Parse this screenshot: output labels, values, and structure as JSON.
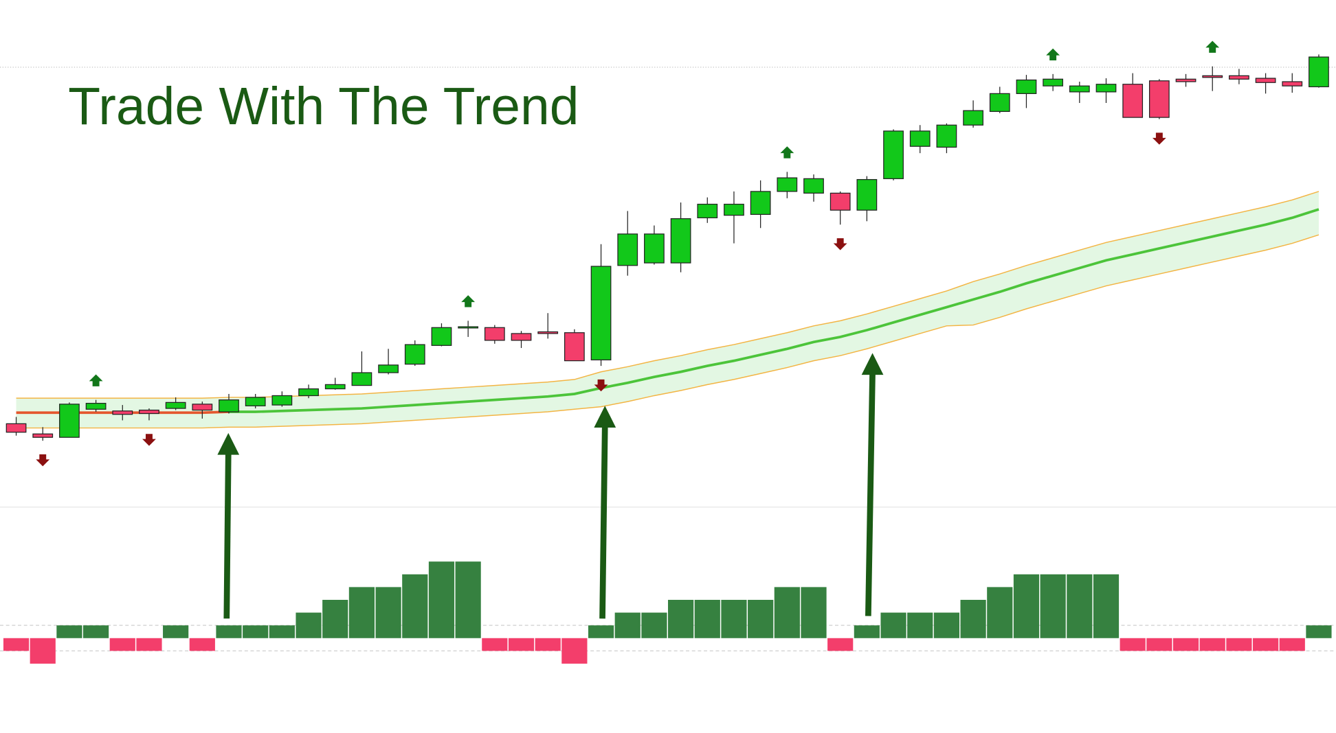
{
  "chart_data": [
    {
      "type": "candlestick",
      "title": "Trade With The Trend",
      "title_color": "#1a5a14",
      "ylim": [
        0,
        595
      ],
      "up_color": "#12c81a",
      "down_color": "#f33e6b",
      "open": [
        97,
        85,
        81,
        114,
        112,
        113,
        115,
        120,
        111,
        118,
        119,
        130,
        138,
        142,
        157,
        167,
        189,
        210,
        210,
        203,
        205,
        204,
        172,
        283,
        286,
        286,
        339,
        342,
        343,
        370,
        368,
        368,
        348,
        385,
        423,
        422,
        448,
        464,
        485,
        494,
        487,
        487,
        496,
        500,
        502,
        506,
        506,
        503,
        499,
        493
      ],
      "high": [
        105,
        93,
        122,
        125,
        119,
        115,
        128,
        123,
        132,
        132,
        135,
        143,
        151,
        182,
        185,
        195,
        215,
        218,
        213,
        206,
        227,
        208,
        308,
        347,
        330,
        357,
        363,
        370,
        383,
        393,
        390,
        370,
        388,
        443,
        448,
        450,
        477,
        493,
        507,
        508,
        499,
        503,
        509,
        502,
        508,
        517,
        514,
        509,
        509,
        531
      ],
      "low": [
        83,
        77,
        81,
        111,
        101,
        101,
        113,
        103,
        109,
        115,
        117,
        127,
        137,
        142,
        155,
        165,
        188,
        199,
        191,
        186,
        197,
        171,
        165,
        271,
        284,
        275,
        333,
        309,
        327,
        362,
        358,
        331,
        335,
        383,
        415,
        415,
        445,
        462,
        468,
        488,
        474,
        474,
        457,
        455,
        493,
        488,
        496,
        485,
        486,
        492
      ],
      "close": [
        87,
        81,
        120,
        121,
        108,
        109,
        122,
        113,
        125,
        128,
        130,
        138,
        143,
        157,
        166,
        190,
        210,
        211,
        195,
        195,
        203,
        171,
        282,
        320,
        320,
        338,
        355,
        355,
        370,
        386,
        385,
        348,
        384,
        441,
        441,
        448,
        465,
        485,
        501,
        502,
        494,
        496,
        457,
        457,
        499,
        504,
        502,
        498,
        494,
        528
      ],
      "series": [
        {
          "color": "#e4572e",
          "values": [
            110,
            110,
            110,
            110,
            110,
            110,
            110,
            110,
            111,
            null,
            null,
            null,
            null,
            null,
            null,
            null,
            null,
            null,
            null,
            null,
            null,
            null,
            null,
            null,
            null,
            null,
            null,
            null,
            null,
            null,
            null,
            null,
            null,
            null,
            null,
            null,
            null,
            null,
            null,
            null,
            null,
            null,
            null,
            null,
            null,
            null,
            null,
            null,
            null,
            null
          ]
        },
        {
          "color": "#4cc43a",
          "values": [
            null,
            null,
            null,
            null,
            null,
            null,
            null,
            null,
            111,
            111,
            112,
            113,
            114,
            115,
            117,
            119,
            121,
            123,
            125,
            127,
            129,
            132,
            139,
            145,
            152,
            158,
            165,
            171,
            178,
            185,
            193,
            199,
            207,
            216,
            225,
            234,
            243,
            252,
            262,
            271,
            280,
            289,
            296,
            303,
            310,
            317,
            324,
            331,
            339,
            349
          ]
        }
      ],
      "band_color": "#f3b443",
      "band_fill": "#dcf5dc",
      "upper": [
        127,
        127,
        127,
        127,
        127,
        127,
        127,
        127,
        128,
        128,
        129,
        130,
        131,
        132,
        134,
        136,
        138,
        140,
        142,
        144,
        146,
        149,
        158,
        164,
        171,
        177,
        184,
        190,
        197,
        204,
        212,
        218,
        226,
        235,
        244,
        253,
        264,
        273,
        283,
        292,
        301,
        310,
        317,
        324,
        331,
        338,
        345,
        352,
        360,
        370
      ],
      "lower": [
        92,
        92,
        92,
        92,
        92,
        92,
        92,
        92,
        93,
        93,
        94,
        95,
        96,
        97,
        99,
        101,
        103,
        105,
        107,
        109,
        111,
        114,
        117,
        123,
        130,
        136,
        143,
        149,
        156,
        163,
        171,
        177,
        185,
        194,
        203,
        212,
        213,
        222,
        232,
        241,
        250,
        259,
        266,
        273,
        280,
        287,
        294,
        301,
        309,
        319
      ],
      "buy_signals": [
        3,
        17,
        29,
        39,
        45
      ],
      "buy_color": "#12771a",
      "sell_signals": [
        1,
        5,
        22,
        31,
        43
      ],
      "sell_color": "#8b1010"
    },
    {
      "type": "bar",
      "ylim": [
        -7,
        10
      ],
      "values": [
        -1,
        -2,
        1,
        1,
        -1,
        -1,
        1,
        -1,
        1,
        1,
        1,
        2,
        3,
        4,
        4,
        5,
        6,
        6,
        -1,
        -1,
        -1,
        -2,
        1,
        2,
        2,
        3,
        3,
        3,
        3,
        4,
        4,
        -1,
        1,
        2,
        2,
        2,
        3,
        4,
        5,
        5,
        5,
        5,
        -1,
        -1,
        -1,
        -1,
        -1,
        -1,
        -1,
        1
      ],
      "up_color": "#368140",
      "down_color": "#f33e6b",
      "reference_lines": [
        1,
        -1
      ]
    }
  ]
}
